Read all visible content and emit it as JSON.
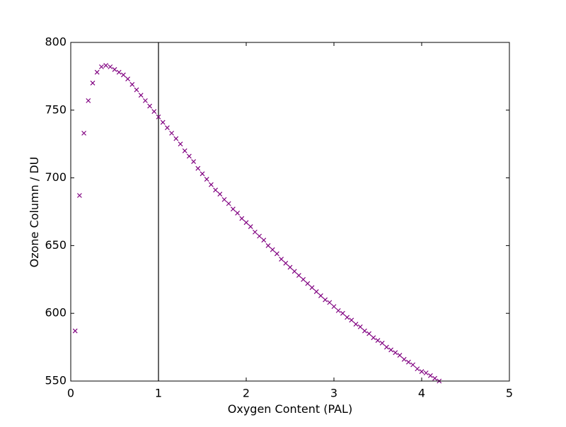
{
  "chart_data": {
    "type": "scatter",
    "xlabel": "Oxygen Content (PAL)",
    "ylabel": "Ozone Column / DU",
    "xlim": [
      0,
      5
    ],
    "ylim": [
      550,
      800
    ],
    "xticks": [
      0,
      1,
      2,
      3,
      4,
      5
    ],
    "yticks": [
      550,
      600,
      650,
      700,
      750,
      800
    ],
    "vline": 1,
    "vline_color": "#000000",
    "series": [
      {
        "color": "#800080",
        "x": [
          0.05,
          0.1,
          0.15,
          0.2,
          0.25,
          0.3,
          0.35,
          0.4,
          0.45,
          0.5,
          0.55,
          0.6,
          0.65,
          0.7,
          0.75,
          0.8,
          0.85,
          0.9,
          0.95,
          1.0,
          1.05,
          1.1,
          1.15,
          1.2,
          1.25,
          1.3,
          1.35,
          1.4,
          1.45,
          1.5,
          1.55,
          1.6,
          1.65,
          1.7,
          1.75,
          1.8,
          1.85,
          1.9,
          1.95,
          2.0,
          2.05,
          2.1,
          2.15,
          2.2,
          2.25,
          2.3,
          2.35,
          2.4,
          2.45,
          2.5,
          2.55,
          2.6,
          2.65,
          2.7,
          2.75,
          2.8,
          2.85,
          2.9,
          2.95,
          3.0,
          3.05,
          3.1,
          3.15,
          3.2,
          3.25,
          3.3,
          3.35,
          3.4,
          3.45,
          3.5,
          3.55,
          3.6,
          3.65,
          3.7,
          3.75,
          3.8,
          3.85,
          3.9,
          3.95,
          4.0,
          4.05,
          4.1,
          4.15,
          4.2
        ],
        "values": [
          587,
          687,
          733,
          757,
          770,
          778,
          782,
          783,
          782,
          780,
          778,
          776,
          773,
          769,
          765,
          761,
          757,
          753,
          749,
          745,
          741,
          737,
          733,
          729,
          725,
          720,
          716,
          712,
          707,
          703,
          699,
          695,
          691,
          688,
          684,
          681,
          677,
          674,
          670,
          667,
          664,
          660,
          657,
          654,
          650,
          647,
          644,
          640,
          637,
          634,
          631,
          628,
          625,
          622,
          619,
          616,
          613,
          610,
          608,
          605,
          602,
          600,
          597,
          595,
          592,
          590,
          587,
          585,
          582,
          580,
          578,
          575,
          573,
          571,
          569,
          566,
          564,
          562,
          559,
          557,
          556,
          554,
          552,
          550
        ]
      }
    ]
  }
}
